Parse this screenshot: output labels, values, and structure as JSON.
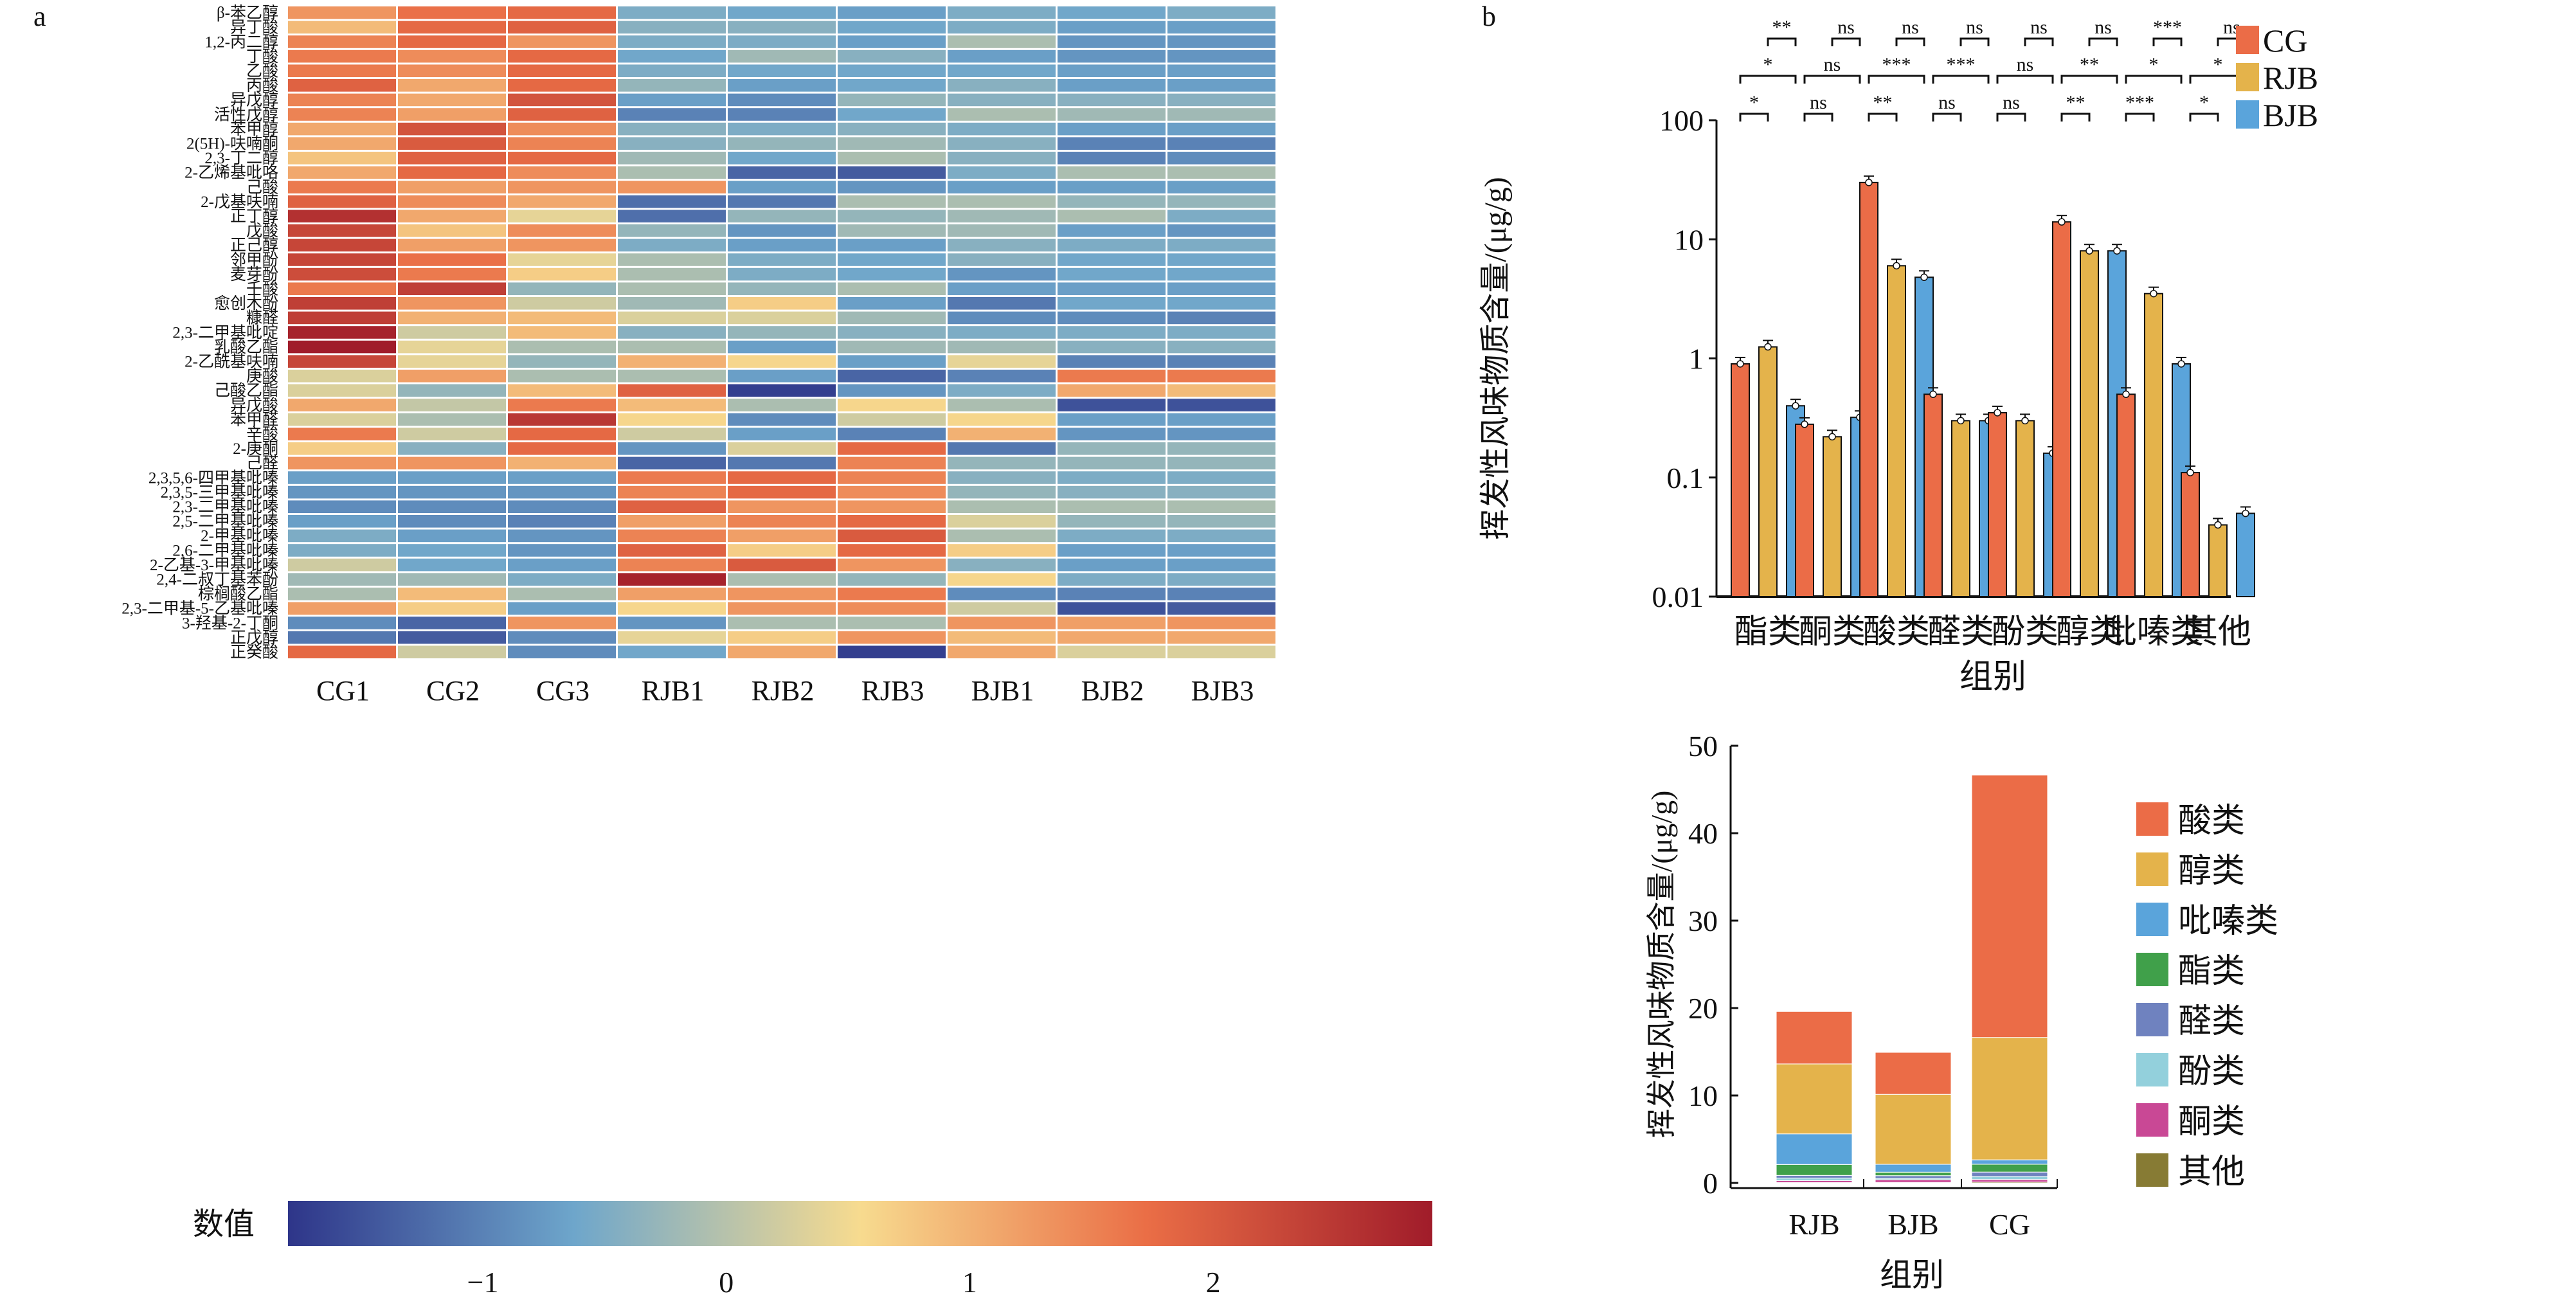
{
  "panels": {
    "a_label": "a",
    "b_label": "b"
  },
  "chart_data": [
    {
      "type": "heatmap",
      "panel": "a",
      "columns": [
        "CG1",
        "CG2",
        "CG3",
        "RJB1",
        "RJB2",
        "RJB3",
        "BJB1",
        "BJB2",
        "BJB3"
      ],
      "rows": [
        "β-苯乙醇",
        "异丁酸",
        "1,2-丙二醇",
        "丁酸",
        "乙酸",
        "丙酸",
        "异戊醇",
        "活性戊醇",
        "苯甲醇",
        "2(5H)-呋喃酮",
        "2,3-丁二醇",
        "2-乙烯基吡咯",
        "己酸",
        "2-戊基呋喃",
        "正丁醇",
        "戊酸",
        "正己醇",
        "邻甲酚",
        "麦芽酚",
        "壬酸",
        "愈创木酚",
        "糠醛",
        "2,3-二甲基吡啶",
        "乳酸乙酯",
        "2-乙酰基呋喃",
        "庚酸",
        "己酸乙酯",
        "异戊酸",
        "苯甲醛",
        "辛酸",
        "2-庚酮",
        "己醛",
        "2,3,5,6-四甲基吡嗪",
        "2,3,5-三甲基吡嗪",
        "2,3-二甲基吡嗪",
        "2,5-二甲基吡嗪",
        "2-甲基吡嗪",
        "2,6-二甲基吡嗪",
        "2-乙基-3-甲基吡嗪",
        "2,4-二叔丁基苯酚",
        "棕榈酸乙酯",
        "2,3-二甲基-5-乙基吡嗪",
        "3-羟基-2-丁酮",
        "正戊醇",
        "正癸酸"
      ],
      "values": [
        [
          1.3,
          1.7,
          1.8,
          -0.5,
          -0.6,
          -0.7,
          -0.5,
          -0.6,
          -0.5
        ],
        [
          0.9,
          1.8,
          1.9,
          -0.4,
          -0.4,
          -0.6,
          -0.5,
          -0.7,
          -0.7
        ],
        [
          1.5,
          1.8,
          1.3,
          -0.5,
          -0.5,
          -0.7,
          -0.1,
          -0.8,
          -0.8
        ],
        [
          1.6,
          1.4,
          1.8,
          -0.6,
          -0.2,
          -0.4,
          -0.7,
          -0.8,
          -0.8
        ],
        [
          1.6,
          1.4,
          1.8,
          -0.5,
          -0.6,
          -0.6,
          -0.6,
          -0.7,
          -0.7
        ],
        [
          1.9,
          1.1,
          1.8,
          -0.3,
          -0.7,
          -0.6,
          -0.4,
          -0.7,
          -0.7
        ],
        [
          1.5,
          1.1,
          2.1,
          -0.7,
          -0.9,
          -0.3,
          -0.4,
          -0.4,
          -0.4
        ],
        [
          1.5,
          1.2,
          1.9,
          -1.0,
          -1.0,
          -0.6,
          -0.1,
          -0.2,
          -0.2
        ],
        [
          1.1,
          2.1,
          1.4,
          -0.4,
          -0.5,
          -0.4,
          -0.5,
          -0.7,
          -0.7
        ],
        [
          1.1,
          2.0,
          1.5,
          -0.4,
          -0.3,
          -0.2,
          -0.4,
          -1.0,
          -1.0
        ],
        [
          0.8,
          1.9,
          1.8,
          -0.2,
          -0.6,
          -0.1,
          -0.4,
          -1.0,
          -0.9
        ],
        [
          1.1,
          1.8,
          1.4,
          -0.1,
          -1.3,
          -1.4,
          -0.5,
          -0.1,
          -0.1
        ],
        [
          1.6,
          1.2,
          1.3,
          1.3,
          -0.7,
          -0.8,
          -0.7,
          -0.7,
          -0.7
        ],
        [
          1.9,
          1.4,
          1.1,
          -1.2,
          -1.1,
          -0.1,
          -0.1,
          -0.3,
          -0.3
        ],
        [
          2.6,
          1.1,
          0.4,
          -1.2,
          -0.3,
          -0.3,
          -0.2,
          -0.1,
          -0.5
        ],
        [
          2.3,
          0.8,
          1.4,
          -0.3,
          -0.8,
          -0.2,
          -0.2,
          -0.7,
          -0.8
        ],
        [
          2.3,
          1.2,
          1.3,
          -0.5,
          -0.7,
          -0.7,
          -0.4,
          -0.5,
          -0.5
        ],
        [
          2.3,
          1.7,
          0.4,
          -0.1,
          -0.5,
          -0.6,
          -0.4,
          -0.6,
          -0.6
        ],
        [
          2.2,
          1.6,
          0.7,
          -0.1,
          -0.5,
          -0.6,
          -0.8,
          -0.6,
          -0.6
        ],
        [
          1.6,
          2.4,
          -0.3,
          -0.1,
          -0.3,
          -0.1,
          -0.7,
          -0.7,
          -0.7
        ],
        [
          2.4,
          1.3,
          0.2,
          -0.2,
          0.7,
          -0.7,
          -1.1,
          -0.6,
          -0.6
        ],
        [
          2.4,
          1.0,
          0.9,
          0.3,
          0.3,
          -0.2,
          -0.9,
          -0.9,
          -1.0
        ],
        [
          2.8,
          0.2,
          0.9,
          -0.4,
          -0.3,
          -0.4,
          -0.5,
          -0.5,
          -0.5
        ],
        [
          2.9,
          0.4,
          -0.1,
          -0.1,
          -0.7,
          -0.2,
          -0.2,
          -0.4,
          -0.4
        ],
        [
          2.3,
          0.4,
          -0.3,
          1.0,
          0.6,
          -0.7,
          0.4,
          -1.0,
          -1.0
        ],
        [
          0.3,
          1.2,
          -0.1,
          -0.1,
          -0.7,
          -1.3,
          -1.0,
          1.6,
          1.6
        ],
        [
          0.3,
          -0.3,
          0.9,
          1.9,
          -1.7,
          -0.8,
          -0.5,
          1.1,
          0.9
        ],
        [
          1.1,
          0.1,
          1.6,
          0.9,
          -0.1,
          0.6,
          -0.1,
          -1.5,
          -1.5
        ],
        [
          0.3,
          -0.1,
          2.5,
          0.6,
          -0.9,
          0.2,
          0.6,
          -0.7,
          -0.7
        ],
        [
          1.6,
          0.2,
          1.8,
          0.2,
          -0.7,
          -1.0,
          1.0,
          -0.8,
          -0.8
        ],
        [
          0.7,
          -0.4,
          1.8,
          -0.8,
          0.3,
          1.8,
          -1.1,
          -0.3,
          -0.3
        ],
        [
          1.3,
          1.3,
          1.0,
          -1.3,
          -1.1,
          1.5,
          -0.3,
          -0.3,
          -0.3
        ],
        [
          -0.7,
          -0.7,
          -0.7,
          1.6,
          1.8,
          1.5,
          -0.4,
          -0.5,
          -0.5
        ],
        [
          -0.8,
          -0.8,
          -0.8,
          1.5,
          1.8,
          1.4,
          -0.3,
          -0.4,
          -0.4
        ],
        [
          -0.9,
          -0.9,
          -0.9,
          1.9,
          1.3,
          1.3,
          -0.1,
          -0.1,
          -0.1
        ],
        [
          -0.7,
          -0.9,
          -1.0,
          1.2,
          1.5,
          1.8,
          0.3,
          -0.3,
          -0.3
        ],
        [
          -0.5,
          -0.7,
          -0.8,
          1.5,
          1.2,
          2.0,
          -0.1,
          -0.5,
          -0.5
        ],
        [
          -0.5,
          -0.6,
          -0.8,
          1.9,
          0.7,
          1.8,
          0.7,
          -0.7,
          -0.7
        ],
        [
          0.2,
          -0.6,
          -0.7,
          1.5,
          2.0,
          1.3,
          -0.4,
          -0.7,
          -0.7
        ],
        [
          -0.2,
          -0.2,
          -0.5,
          2.8,
          -0.1,
          -0.3,
          0.6,
          -0.5,
          -0.5
        ],
        [
          -0.1,
          0.9,
          -0.1,
          1.2,
          1.3,
          1.6,
          -0.9,
          -1.0,
          -1.0
        ],
        [
          1.2,
          0.7,
          -0.7,
          0.6,
          1.3,
          1.4,
          0.2,
          -1.5,
          -1.4
        ],
        [
          -0.9,
          -1.3,
          1.3,
          -0.8,
          -0.1,
          -0.1,
          1.3,
          1.2,
          1.3
        ],
        [
          -1.1,
          -1.4,
          -0.9,
          0.4,
          0.7,
          1.3,
          0.9,
          1.1,
          1.1
        ],
        [
          1.8,
          0.2,
          -0.9,
          -0.6,
          1.1,
          -1.7,
          1.1,
          0.3,
          0.3
        ]
      ],
      "colorbar": {
        "label": "数值",
        "ticks": [
          -1,
          0,
          1,
          2
        ],
        "range": [
          -1.8,
          2.9
        ],
        "colors": [
          "#2e3589",
          "#6ea6cb",
          "#f7db8f",
          "#ea6e46",
          "#a01c2a"
        ]
      }
    },
    {
      "type": "bar",
      "panel": "b-top",
      "scale": "log",
      "categories": [
        "酯类",
        "酮类",
        "酸类",
        "醛类",
        "酚类",
        "醇类",
        "吡嗪类",
        "其他"
      ],
      "series": [
        {
          "name": "CG",
          "color": "#eb6c47",
          "values": [
            0.9,
            0.28,
            30,
            0.5,
            0.35,
            14,
            0.5,
            0.11
          ]
        },
        {
          "name": "RJB",
          "color": "#e4b34b",
          "values": [
            1.25,
            0.22,
            6.0,
            0.3,
            0.3,
            8.0,
            3.5,
            0.04
          ]
        },
        {
          "name": "BJB",
          "color": "#5aa4db",
          "values": [
            0.4,
            0.32,
            4.8,
            0.3,
            0.16,
            8.0,
            0.9,
            0.05
          ]
        }
      ],
      "significance": {
        "top_RJB_BJB": [
          "**",
          "ns",
          "ns",
          "ns",
          "ns",
          "ns",
          "***",
          "ns"
        ],
        "middle_CG_BJB": [
          "*",
          "ns",
          "***",
          "***",
          "ns",
          "**",
          "*",
          "*"
        ],
        "bottom_CG_RJB": [
          "*",
          "ns",
          "**",
          "ns",
          "ns",
          "**",
          "***",
          "*"
        ]
      },
      "ylabel": "挥发性风味物质含量/(μg/g)",
      "xlabel": "组别",
      "yticks": [
        "0.01",
        "0.1",
        "1",
        "10",
        "100"
      ],
      "ylim": [
        0.01,
        100
      ],
      "legend": [
        "CG",
        "RJB",
        "BJB"
      ],
      "legend_position": "top-right"
    },
    {
      "type": "bar",
      "stacked": true,
      "panel": "b-bottom",
      "categories": [
        "RJB",
        "BJB",
        "CG"
      ],
      "series": [
        {
          "name": "其他",
          "color": "#877b34",
          "values": [
            0.04,
            0.05,
            0.11
          ]
        },
        {
          "name": "酮类",
          "color": "#c94895",
          "values": [
            0.22,
            0.32,
            0.28
          ]
        },
        {
          "name": "酚类",
          "color": "#93d0dc",
          "values": [
            0.3,
            0.16,
            0.35
          ]
        },
        {
          "name": "醛类",
          "color": "#6f82bf",
          "values": [
            0.3,
            0.3,
            0.5
          ]
        },
        {
          "name": "酯类",
          "color": "#40a04a",
          "values": [
            1.25,
            0.4,
            0.9
          ]
        },
        {
          "name": "吡嗪类",
          "color": "#5aa4db",
          "values": [
            3.5,
            0.9,
            0.5
          ]
        },
        {
          "name": "醇类",
          "color": "#e4b34b",
          "values": [
            8.0,
            8.0,
            14
          ]
        },
        {
          "name": "酸类",
          "color": "#eb6c47",
          "values": [
            6.0,
            4.8,
            30
          ]
        }
      ],
      "legend_order": [
        "酸类",
        "醇类",
        "吡嗪类",
        "酯类",
        "醛类",
        "酚类",
        "酮类",
        "其他"
      ],
      "ylabel": "挥发性风味物质含量/(μg/g)",
      "xlabel": "组别",
      "yticks": [
        "0",
        "10",
        "20",
        "30",
        "40",
        "50"
      ],
      "ylim": [
        0,
        50
      ],
      "legend_position": "right"
    }
  ]
}
